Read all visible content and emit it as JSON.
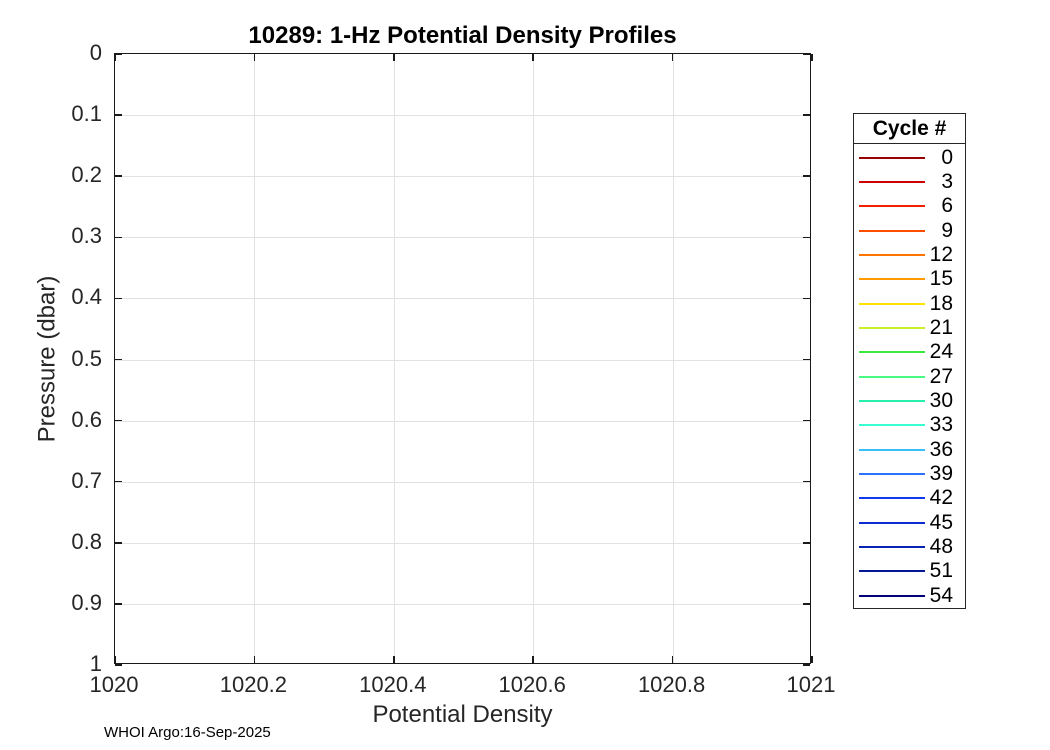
{
  "figure": {
    "footer": "WHOI Argo:16-Sep-2025"
  },
  "chart_data": {
    "type": "line",
    "title": "10289: 1-Hz Potential Density Profiles",
    "xlabel": "Potential Density",
    "ylabel": "Pressure (dbar)",
    "xlim": [
      1020,
      1021
    ],
    "ylim": [
      0,
      1
    ],
    "y_axis_direction": "reversed",
    "grid": true,
    "x_ticks": [
      1020,
      1020.2,
      1020.4,
      1020.6,
      1020.8,
      1021
    ],
    "x_tick_labels": [
      "1020",
      "1020.2",
      "1020.4",
      "1020.6",
      "1020.8",
      "1021"
    ],
    "y_ticks": [
      0,
      0.1,
      0.2,
      0.3,
      0.4,
      0.5,
      0.6,
      0.7,
      0.8,
      0.9,
      1
    ],
    "y_tick_labels": [
      "0",
      "0.1",
      "0.2",
      "0.3",
      "0.4",
      "0.5",
      "0.6",
      "0.7",
      "0.8",
      "0.9",
      "1"
    ],
    "legend": {
      "title": "Cycle #",
      "position": "outside-right",
      "entries": [
        {
          "label": "0",
          "color": "#990000"
        },
        {
          "label": "3",
          "color": "#CC0000"
        },
        {
          "label": "6",
          "color": "#F22000"
        },
        {
          "label": "9",
          "color": "#FF4D00"
        },
        {
          "label": "12",
          "color": "#FF7300"
        },
        {
          "label": "15",
          "color": "#FF9900"
        },
        {
          "label": "18",
          "color": "#FFE100"
        },
        {
          "label": "21",
          "color": "#C9F226"
        },
        {
          "label": "24",
          "color": "#3CE83C"
        },
        {
          "label": "27",
          "color": "#46FA82"
        },
        {
          "label": "30",
          "color": "#28F0AA"
        },
        {
          "label": "33",
          "color": "#37FFD2"
        },
        {
          "label": "36",
          "color": "#38BDFF"
        },
        {
          "label": "39",
          "color": "#2B72FF"
        },
        {
          "label": "42",
          "color": "#1238F0"
        },
        {
          "label": "45",
          "color": "#0E2CD2"
        },
        {
          "label": "48",
          "color": "#0823B4"
        },
        {
          "label": "51",
          "color": "#041896"
        },
        {
          "label": "54",
          "color": "#000078"
        }
      ]
    },
    "series": [],
    "note": "Plot area is empty; no profile curves are visible within the axis limits."
  },
  "colors": {
    "axis": "#262626",
    "grid": "#E2E2E2",
    "background": "#FFFFFF"
  }
}
